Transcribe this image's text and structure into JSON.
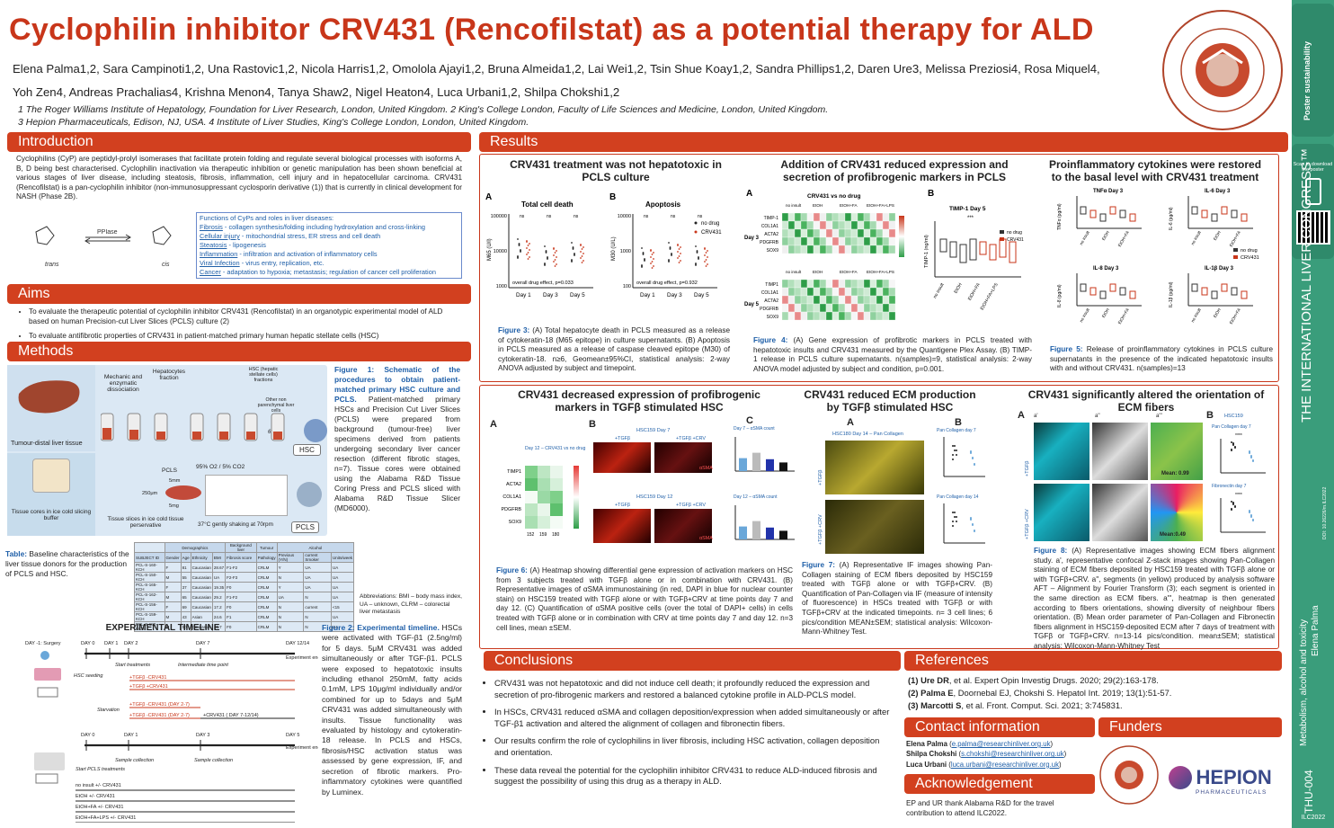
{
  "title": "Cyclophilin inhibitor CRV431 (Rencofilstat) as a potential therapy for ALD",
  "authors_line1": "Elena Palma1,2, Sara Campinoti1,2, Una Rastovic1,2, Nicola Harris1,2, Omolola Ajayi1,2, Bruna Almeida1,2, Lai Wei1,2, Tsin Shue Koay1,2, Sandra Phillips1,2, Daren Ure3, Melissa Preziosi4, Rosa Miquel4,",
  "authors_line2": "Yoh Zen4, Andreas Prachalias4, Krishna Menon4, Tanya Shaw2, Nigel Heaton4, Luca Urbani1,2, Shilpa Chokshi1,2",
  "affil_line1": "1 The Roger Williams Institute of Hepatology, Foundation for Liver Research, London, United Kingdom. 2 King's College London, Faculty of Life Sciences and Medicine, London, United Kingdom.",
  "affil_line2": "3 Hepion Pharmaceuticals, Edison, NJ, USA.  4 Institute of Liver Studies, King's College London, London, United Kingdom.",
  "seal_text": "The Roger Williams Institute of Hepatology",
  "sections": {
    "intro": "Introduction",
    "aims": "Aims",
    "methods": "Methods",
    "results": "Results",
    "conclusions": "Conclusions",
    "references": "References",
    "contact": "Contact information",
    "funders": "Funders",
    "ack": "Acknowledgement"
  },
  "intro_text": "Cyclophilins (CyP) are peptidyl-prolyl isomerases that facilitate protein folding and regulate several biological processes with isoforms A, B, D being best characterised. Cyclophilin inactivation via therapeutic inhibition or genetic manipulation has been shown beneficial at various stages of liver disease, including steatosis, fibrosis, inflammation, cell injury and in hepatocellular carcinoma. CRV431 (Rencofilstat) is a pan-cyclophilin inhibitor (non-immunosuppressant cyclosporin derivative (1)) that is currently in clinical development for NASH (Phase 2B).",
  "cyp_roles": {
    "heading": "Functions of CyPs and roles in liver diseases:",
    "items": [
      {
        "term": "Fibrosis",
        "text": "- collagen synthesis/folding including hydroxylation and cross-linking"
      },
      {
        "term": "Cellular injury",
        "text": "- mitochondrial stress, ER stress and cell death"
      },
      {
        "term": "Steatosis",
        "text": "- lipogenesis"
      },
      {
        "term": "Inflammation",
        "text": "- infiltration and activation of inflammatory cells"
      },
      {
        "term": "Viral Infection",
        "text": "- virus entry, replication, etc."
      },
      {
        "term": "Cancer",
        "text": "- adaptation to hypoxia; metastasis; regulation of cancer cell proliferation"
      }
    ]
  },
  "isomer": {
    "enzyme": "PPIase",
    "left": "trans",
    "right": "cis"
  },
  "aims": [
    "To evaluate the therapeutic potential of cyclophilin inhibitor CRV431 (Rencofilstat) in an organotypic experimental model of ALD based on human Precision-cut Liver Slices (PCLS) culture (2)",
    "To evaluate antifibrotic properties of CRV431 in patient-matched primary human hepatic stellate cells (HSC)"
  ],
  "methods": {
    "labels": {
      "tumour": "Tumour-distal liver tissue",
      "mech": "Mechanic and enzymatic dissociation",
      "hep": "Hepatocytes fraction",
      "hsc_frac": "HSC (hepatic stellate cells) fractions",
      "other": "Other non parenchymal liver cells",
      "g650": "650xg",
      "hsc": "HSC",
      "pcls": "PCLS",
      "tissue": "Tissue cores in ice cold slicing buffer",
      "slices": "Tissue slices in ice cold tissue perservative",
      "shaking": "37°C gently shaking at 70rpm",
      "co2": "95% O2 / 5% CO2",
      "d5": "5mm",
      "d250": "250μm",
      "w5": "5mg"
    },
    "fig1_caption_bold": "Figure 1: Schematic of the procedures to obtain patient-matched primary HSC culture and PCLS.",
    "fig1_caption": "Patient-matched primary HSCs and Precision Cut Liver Slices (PCLS) were prepared from background (tumour-free) liver specimens derived from patients undergoing secondary liver cancer resection (different fibrotic stages, n=7). Tissue cores were obtained using the Alabama R&D Tissue Coring Press and PCLS sliced with Alabama R&D Tissue Slicer (MD6000).",
    "table_caption_bold": "Table:",
    "table_caption": "Baseline characteristics of the liver tissue donors for the production of PCLS and HSC.",
    "abbrev": "Abbreviations: BMI – body mass index, UA – unknown, CLRM – colorectal liver metastasis",
    "table_headers": [
      "SUBJECT ID",
      "Gender",
      "Age",
      "Ethnicity",
      "BMI",
      "Fibrosis score",
      "Pathology",
      "Previous (Y/N)",
      "current Smoker",
      "Units/week"
    ],
    "table_groups": [
      "Demographics",
      "Background liver",
      "Tumour",
      "Alcohol"
    ],
    "table_rows": [
      [
        "PCL-S-160-KCH",
        "F",
        "81",
        "Caucasian",
        "28.67",
        "F1-F2",
        "CRLM",
        "Y",
        "UA",
        "UA"
      ],
      [
        "PCL-S-150-KCH",
        "M",
        "55",
        "Caucasian",
        "UA",
        "F2-F3",
        "CRLM",
        "N",
        "UA",
        "UA"
      ],
      [
        "PCL-S-165-KCH",
        "F",
        "37",
        "Caucasian",
        "19.35",
        "F0",
        "CRLM",
        "Y",
        "UA",
        "UA"
      ],
      [
        "PCL-S-162-KCH",
        "M",
        "65",
        "Caucasian",
        "29.2",
        "F1-F2",
        "CRLM",
        "UA",
        "N",
        "UA"
      ],
      [
        "PCL-S-156-KCH",
        "F",
        "69",
        "Caucasian",
        "17.2",
        "F0",
        "CRLM",
        "N",
        "current",
        "<15"
      ],
      [
        "PCL-S-159-KCH",
        "M",
        "43",
        "Asian",
        "24.6",
        "F1",
        "CRLM",
        "N",
        "N",
        "UA"
      ],
      [
        "PCL-S-180-KCH",
        "M",
        "50",
        "Caucasian",
        "26.7",
        "F0",
        "CRLM",
        "N",
        "N",
        "UA"
      ]
    ],
    "timeline_title": "EXPERIMENTAL TIMELINE",
    "timeline": {
      "days_top": [
        "DAY -1: Surgery",
        "DAY 0",
        "DAY 1",
        "DAY 2",
        "DAY 7",
        "DAY 12/14"
      ],
      "hsc_seeding": "HSC seeding",
      "start": "Start treatments",
      "inter": "Intermediate time point",
      "exp_end": "Experiment end",
      "t1": "+TGFβ -CRV431",
      "t2": "+TGFβ +CRV431",
      "starv": "Starvation",
      "t3": "+TGFβ -CRV431  (DAY 2-7)",
      "t4": "+TGFβ -CRV431  (DAY 2-7)",
      "t5": "+CRV431  ( DAY 7-12/14)",
      "days_bottom": [
        "DAY 0",
        "DAY 1",
        "DAY 3",
        "DAY 5"
      ],
      "start2": "Start PCLS treatments",
      "sample": "Sample collection",
      "sample2": "Sample collection",
      "exp_end2": "Experiment end",
      "conds": [
        "no insult +/- CRV431",
        "EtOH +/- CRV431",
        "EtOH+FA +/- CRV431",
        "EtOH+FA+LPS +/- CRV431"
      ],
      "hsc": "HSC",
      "pcls": "PCLS"
    },
    "fig2_caption_bold": "Figure 2: Experimental timeline.",
    "fig2_caption": "HSCs were activated with TGF-β1 (2.5ng/ml) for 5 days. 5μM CRV431 was added simultaneously or after TGF-β1. PCLS were exposed to hepatotoxic insults including ethanol 250mM, fatty acids 0.1mM, LPS 10μg/ml individually and/or combined for up to 5days and 5μM CRV431 was added simultaneously with insults. Tissue functionality was evaluated by histology and cytokeratin-18 release. In PCLS and HSCs, fibrosis/HSC activation status was assessed by gene expression, IF, and secretion of fibrotic markers. Pro-inflammatory cytokines were quantified by Luminex."
  },
  "results": {
    "p1_title": "CRV431 treatment was not hepatotoxic in PCLS culture",
    "p2_title": "Addition of CRV431 reduced expression and secretion of profibrogenic markers in PCLS",
    "p3_title": "Proinflammatory cytokines were restored to the basal level with CRV431 treatment",
    "p4_title": "CRV431 decreased expression of profibrogenic markers in TGFβ stimulated HSC",
    "p5_title": "CRV431 reduced ECM production by TGFβ stimulated HSC",
    "p6_title": "CRV431 significantly altered the orientation of ECM fibers",
    "fig3": {
      "a": "A",
      "b": "B",
      "ta": "Total cell death",
      "tb": "Apoptosis",
      "ya": "M65 (U/l)",
      "yb": "M30 (U/L)",
      "days": [
        "Day 1",
        "Day 3",
        "Day 5"
      ],
      "effa": "overall drug effect, p=0.033",
      "effb": "overall drug effect, p=0.932",
      "leg1": "no drug",
      "leg2": "CRV431",
      "ns": "ns",
      "yt": [
        "100000",
        "10000",
        "1000"
      ],
      "yt2": [
        "10000",
        "1000",
        "100"
      ]
    },
    "fig3_caption_lbl": "Figure 3:",
    "fig3_caption": "(A) Total hepatocyte death in PCLS measured as a release of cytokeratin-18 (M65 epitope) in culture supernatants. (B) Apoptosis in PCLS measured as a release of caspase cleaved epitope (M30) of cytokeratin-18. n≥6, Geomean±95%CI, statistical analysis: 2-way ANOVA adjusted by subject and timepoint.",
    "fig4": {
      "a": "A",
      "b": "B",
      "title": "CRV431 vs no drug",
      "conds": [
        "no insult",
        "EtOH",
        "EtOH+FA",
        "EtOH+FA+LPS"
      ],
      "genes": [
        "TIMP-1",
        "COL1A1",
        "ACTA2",
        "PDGFRB",
        "SOX9"
      ],
      "genes2": [
        "TIMP1",
        "COL1A1",
        "ACTA2",
        "PDGFRB",
        "SOX9"
      ],
      "d3": "Day 3",
      "d5": "Day 5",
      "timp": "TIMP-1 Day 5",
      "ylab": "TIMP-1 (ng/ml)",
      "sig": "***",
      "leg1": "no drug",
      "leg2": "CRV431",
      "xcats": [
        "no insult",
        "EtOH",
        "EtOH+FA",
        "EtOH+FA+LPS"
      ]
    },
    "fig4_caption_lbl": "Figure 4:",
    "fig4_caption": "(A) Gene expression of profibrotic markers in PCLS treated with hepatotoxic insults and CRV431 measured by the Quantigene Plex Assay. (B) TIMP-1 release in PCLS culture supernatants. n(samples)=9, statistical analysis: 2-way ANOVA model adjusted by subject and condition, p=0.001.",
    "fig5": {
      "tnf": "TNFα Day 3",
      "il6": "IL-6 Day 3",
      "il8": "IL-8 Day 3",
      "il1": "IL-1β Day 3",
      "y1": "TNFα (pg/ml)",
      "y2": "IL-6 (pg/ml)",
      "y3": "IL-8 (pg/ml)",
      "y4": "IL-1β (pg/ml)",
      "leg1": "no drug",
      "leg2": "CRV431",
      "xcats": [
        "no insult",
        "EtOH",
        "EtOH+FA"
      ]
    },
    "fig5_caption_lbl": "Figure 5:",
    "fig5_caption": "Release of proinflammatory cytokines in PCLS culture supernatants in the presence of the indicated hepatotoxic insults with and without CRV431. n(samples)=13",
    "fig6": {
      "a": "A",
      "b": "B",
      "c": "C",
      "hm_title": "Day 12 – CRV431 vs no drug",
      "genes": [
        "TIMP1",
        "ACTA2",
        "COL1A1",
        "PDGFRB",
        "SOX9"
      ],
      "cols": [
        "152",
        "159",
        "180"
      ],
      "hsc7": "HSC159 Day 7",
      "hsc12": "HSC159 Day 12",
      "tgf": "+TGFβ",
      "tgfcrv": "+TGFβ +CRV",
      "asma": "αSMA",
      "c7": "Day 7 – αSMA count",
      "c12": "Day 12 – αSMA count"
    },
    "fig6_caption_lbl": "Figure 6:",
    "fig6_caption": "(A) Heatmap showing differential gene expression of activation markers on HSC from 3 subjects treated with TGFβ alone or in combination with CRV431. (B) Representative images of αSMA immunostaining (in red, DAPI in blue for nuclear counter stain) on HSC159 treated with TGFβ alone or with TGFβ+CRV at time points day 7 and day 12. (C) Quantification of αSMA positive cells (over the total of DAPI+ cells) in cells treated with TGFβ alone or in combination with CRV at time points day 7 and day 12. n=3 cell lines, mean ±SEM.",
    "fig7": {
      "a": "A",
      "b": "B",
      "img_title": "HSC180 Day 14 – Pan Collagen",
      "pc7": "Pan Collagen day 7",
      "pc14": "Pan Collagen day 14",
      "tgf": "+TGFβ",
      "tgfcrv": "+TGFβ +CRV"
    },
    "fig7_caption_lbl": "Figure 7:",
    "fig7_caption": "(A) Representative IF images showing Pan-Collagen staining of ECM fibers deposited by HSC159 treated with TGFβ alone or with TGFβ+CRV. (B) Quantification of Pan-Collagen via IF (measure of intensity of fluorescence) in HSCs treated with TGFβ or with TGFβ+CRV at the indicated timepoints. n= 3 cell lines; 6 pics/condition MEAN±SEM; statistical analysis: Wilcoxon-Mann-Whitney Test.",
    "fig8": {
      "a": "A",
      "b": "B",
      "a1": "a'",
      "a2": "a''",
      "a3": "a'''",
      "m1": "Mean: 0.99",
      "m2": "Mean:0.49",
      "tgf": "+TGFβ",
      "tgfcrv": "+TGFβ +CRV",
      "hsc": "HSC159",
      "pc7": "Pan Collagen day 7",
      "fn7": "Fibronectin day 7",
      "sig": "****"
    },
    "fig8_caption_lbl": "Figure 8:",
    "fig8_caption": "(A) Representative images showing ECM fibers alignment study. a', representative confocal Z-stack images showing Pan-Collagen staining of ECM fibers deposited by HSC159 treated with TGFβ alone or with TGFβ+CRV. a'', segments (in yellow) produced by analysis software AFT – Alignment by Fourier Transform (3); each segment is oriented in the same direction as ECM fibers. a''', heatmap is then generated according to fibers orientations, showing diversity of neighbour fibers orientation. (B) Mean order parameter of Pan-Collagen and Fibronectin fibers alignment in HSC159-deposited ECM after 7 days of treatment with  TGFβ or TGFβ+CRV. n=13-14 pics/condition. mean±SEM;  statistical analysis: Wilcoxon-Mann-Whitney Test"
  },
  "conclusions": [
    "CRV431 was not hepatotoxic and did not induce cell death; it profoundly reduced the expression and secretion of pro-fibrogenic markers and restored a balanced cytokine profile in ALD-PCLS model.",
    "In HSCs, CRV431 reduced αSMA and collagen deposition/expression when added simultaneously or after TGF-β1 activation and altered the alignment of collagen and fibronectin fibers.",
    "Our results confirm the role of cyclophilins in liver fibrosis, including HSC activation, collagen deposition and orientation.",
    "These data reveal the potential for the cyclophilin inhibitor CRV431 to reduce ALD-induced fibrosis and suggest the possibility of using this drug as a therapy in ALD."
  ],
  "references": [
    {
      "n": "(1)",
      "a": "Ure DR",
      "rest": ", et al. Expert Opin Investig Drugs. 2020; 29(2):163-178."
    },
    {
      "n": "(2)",
      "a": "Palma E",
      "rest": ", Doornebal EJ, Chokshi S. Hepatol Int. 2019; 13(1):51-57."
    },
    {
      "n": "(3)",
      "a": "Marcotti S",
      "rest": ", et al. Front. Comput. Sci. 2021; 3:745831."
    }
  ],
  "contacts": [
    {
      "name": "Elena Palma",
      "email": "e.palma@researchinliver.org.uk"
    },
    {
      "name": "Shilpa Chokshi",
      "email": "s.chokshi@researchinliver.org.uk"
    },
    {
      "name": "Luca Urbani",
      "email": "luca.urbani@researchinliver.org.uk"
    }
  ],
  "ack_text": "EP and UR thank Alabama R&D for the travel contribution to attend ILC2022.",
  "hepion": "HEPION",
  "hepion_sub": "PHARMACEUTICALS",
  "sidebar": {
    "scan": "Scan to download the poster",
    "ilc": "THE INTERNATIONAL LIVER CONGRESS™",
    "doi": "DOI: 10.26226/m.ILC2022",
    "topic": "Metabolism, alcohol and toxicity",
    "author": "Elena Palma",
    "code": "THU-004",
    "year": "ILC2022",
    "poster": "Poster sustainability"
  },
  "colors": {
    "accent": "#d2401f",
    "side": "#3a9d7b",
    "blue": "#1f5fa8"
  }
}
